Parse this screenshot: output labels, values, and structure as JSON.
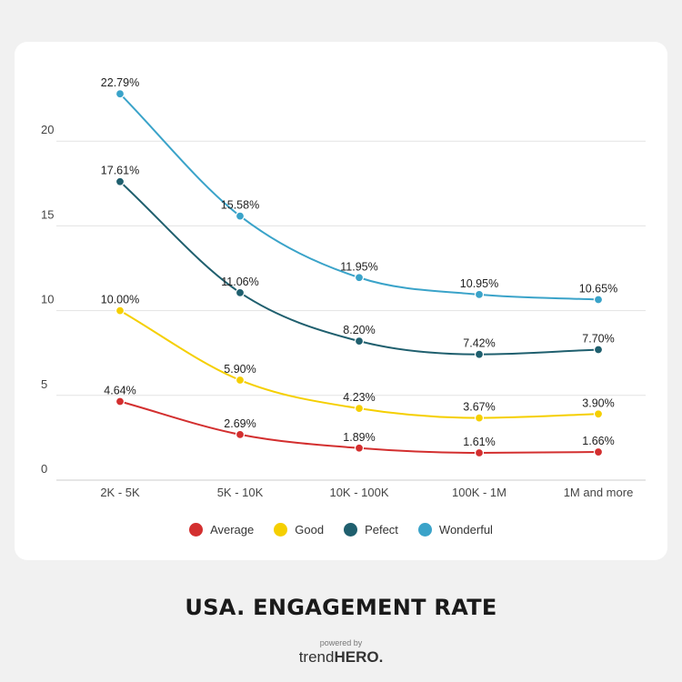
{
  "chart_data": {
    "type": "line",
    "title": "USA. ENGAGEMENT RATE",
    "xlabel": "",
    "ylabel": "",
    "categories": [
      "2K - 5K",
      "5K - 10K",
      "10K - 100K",
      "100K - 1M",
      "1M and more"
    ],
    "yticks": [
      "0",
      "5",
      "10",
      "15",
      "20"
    ],
    "ylim": [
      0,
      25
    ],
    "grid": true,
    "legend_position": "bottom",
    "series": [
      {
        "name": "Average",
        "color": "#d32f2f",
        "values": [
          4.64,
          2.69,
          1.89,
          1.61,
          1.66
        ],
        "labels": [
          "4.64%",
          "2.69%",
          "1.89%",
          "1.61%",
          "1.66%"
        ]
      },
      {
        "name": "Good",
        "color": "#f5cf00",
        "values": [
          10.0,
          5.9,
          4.23,
          3.67,
          3.9
        ],
        "labels": [
          "10.00%",
          "5.90%",
          "4.23%",
          "3.67%",
          "3.90%"
        ]
      },
      {
        "name": "Pefect",
        "color": "#1f5f6e",
        "values": [
          17.61,
          11.06,
          8.2,
          7.42,
          7.7
        ],
        "labels": [
          "17.61%",
          "11.06%",
          "8.20%",
          "7.42%",
          "7.70%"
        ]
      },
      {
        "name": "Wonderful",
        "color": "#3aa3c9",
        "values": [
          22.79,
          15.58,
          11.95,
          10.95,
          10.65
        ],
        "labels": [
          "22.79%",
          "15.58%",
          "11.95%",
          "10.95%",
          "10.65%"
        ]
      }
    ]
  },
  "footer": {
    "powered_by": "powered by",
    "brand_light": "trend",
    "brand_bold": "HERO."
  }
}
